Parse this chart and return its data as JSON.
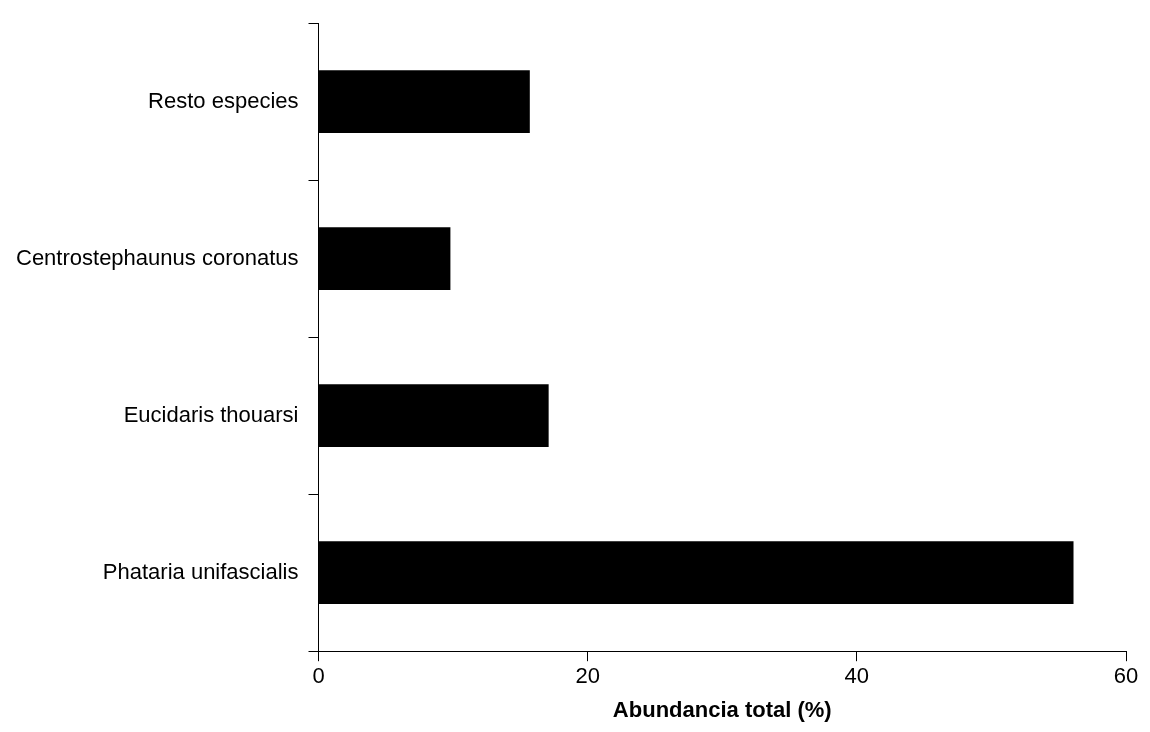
{
  "chart_data": {
    "type": "bar",
    "orientation": "horizontal",
    "xlabel": "Abundancia total (%)",
    "categories": [
      "Resto especies",
      "Centrostephaunus coronatus",
      "Eucidaris thouarsi",
      "Phataria unifascialis"
    ],
    "values": [
      15.7,
      9.8,
      17.1,
      56.1
    ],
    "color": "#000000",
    "xlim": [
      0,
      60
    ],
    "xticks": [
      0,
      20,
      40,
      60
    ],
    "grid": false,
    "legend": false
  }
}
